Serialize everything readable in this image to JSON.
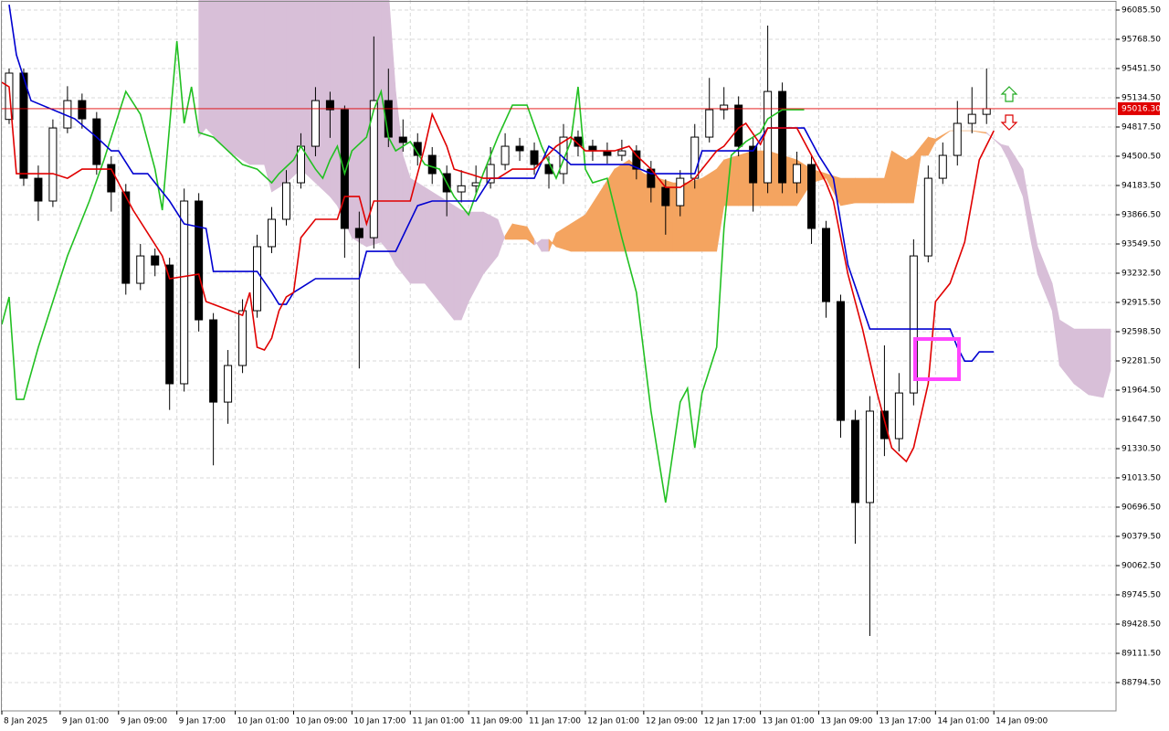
{
  "chart_data": {
    "type": "candlestick",
    "xlim": [
      -0.25,
      152.5
    ],
    "ylim": [
      88487.4,
      96194.5
    ],
    "grid": true,
    "xticks": [
      {
        "value": 0,
        "label": "8 Jan 2025"
      },
      {
        "value": 8,
        "label": "9 Jan 01:00"
      },
      {
        "value": 16,
        "label": "9 Jan 09:00"
      },
      {
        "value": 24,
        "label": "9 Jan 17:00"
      },
      {
        "value": 32,
        "label": "10 Jan 01:00"
      },
      {
        "value": 40,
        "label": "10 Jan 09:00"
      },
      {
        "value": 48,
        "label": "10 Jan 17:00"
      },
      {
        "value": 56,
        "label": "11 Jan 01:00"
      },
      {
        "value": 64,
        "label": "11 Jan 09:00"
      },
      {
        "value": 72,
        "label": "11 Jan 17:00"
      },
      {
        "value": 80,
        "label": "12 Jan 01:00"
      },
      {
        "value": 88,
        "label": "12 Jan 09:00"
      },
      {
        "value": 96,
        "label": "12 Jan 17:00"
      },
      {
        "value": 104,
        "label": "13 Jan 01:00"
      },
      {
        "value": 112,
        "label": "13 Jan 09:00"
      },
      {
        "value": 120,
        "label": "13 Jan 17:00"
      },
      {
        "value": 128,
        "label": "14 Jan 01:00"
      },
      {
        "value": 136,
        "label": "14 Jan 09:00"
      }
    ],
    "yticks": [
      {
        "value": 96085.5,
        "label": "96085.50"
      },
      {
        "value": 95768.5,
        "label": "95768.50"
      },
      {
        "value": 95451.5,
        "label": "95451.50"
      },
      {
        "value": 95134.5,
        "label": "95134.50"
      },
      {
        "value": 94817.5,
        "label": "94817.50"
      },
      {
        "value": 94500.5,
        "label": "94500.50"
      },
      {
        "value": 94183.5,
        "label": "94183.50"
      },
      {
        "value": 93866.5,
        "label": "93866.50"
      },
      {
        "value": 93549.5,
        "label": "93549.50"
      },
      {
        "value": 93232.5,
        "label": "93232.50"
      },
      {
        "value": 92915.5,
        "label": "92915.50"
      },
      {
        "value": 92598.5,
        "label": "92598.50"
      },
      {
        "value": 92281.5,
        "label": "92281.50"
      },
      {
        "value": 91964.5,
        "label": "91964.50"
      },
      {
        "value": 91647.5,
        "label": "91647.50"
      },
      {
        "value": 91330.5,
        "label": "91330.50"
      },
      {
        "value": 91013.5,
        "label": "91013.50"
      },
      {
        "value": 90696.5,
        "label": "90696.50"
      },
      {
        "value": 90379.5,
        "label": "90379.50"
      },
      {
        "value": 90062.5,
        "label": "90062.50"
      },
      {
        "value": 89745.5,
        "label": "89745.50"
      },
      {
        "value": 89428.5,
        "label": "89428.50"
      },
      {
        "value": 89111.5,
        "label": "89111.50"
      },
      {
        "value": 88794.5,
        "label": "88794.50"
      }
    ],
    "current_price": {
      "value": 95016.3,
      "label": "95016.30",
      "color": "#e00000"
    },
    "up_color": "#ffffff",
    "down_color": "#000000",
    "x": [
      1,
      3,
      5,
      7,
      9,
      11,
      13,
      15,
      17,
      19,
      21,
      23,
      25,
      27,
      29,
      31,
      33,
      35,
      37,
      39,
      41,
      43,
      45,
      47,
      49,
      51,
      53,
      55,
      57,
      59,
      61,
      63,
      65,
      67,
      69,
      71,
      73,
      75,
      77,
      79,
      81,
      83,
      85,
      87,
      89,
      91,
      93,
      95,
      97,
      99,
      101,
      103,
      105,
      107,
      109,
      111,
      113,
      115,
      117,
      119,
      121,
      123,
      125,
      127,
      129,
      131,
      133,
      135
    ],
    "open": [
      94900,
      95402,
      94262,
      94015,
      94807,
      95104,
      94906,
      94411,
      94114,
      93123,
      93420,
      93321,
      92034,
      94015,
      92727,
      91835,
      92232,
      92826,
      93520,
      93817,
      94213,
      94609,
      95104,
      95005,
      93718,
      93618,
      95104,
      94708,
      94650,
      94510,
      94312,
      94114,
      94180,
      94213,
      94411,
      94609,
      94560,
      94411,
      94312,
      94708,
      94609,
      94559,
      94510,
      94559,
      94361,
      94163,
      93965,
      94262,
      94708,
      95005,
      95055,
      94609,
      94213,
      95203,
      94213,
      94411,
      93718,
      92925,
      91637,
      90746,
      91737,
      91439,
      91934,
      93420,
      94262,
      94510,
      94857,
      94955
    ],
    "high": [
      95451,
      95450,
      94400,
      94900,
      95260,
      95180,
      94980,
      94500,
      94200,
      93550,
      93500,
      93400,
      94150,
      94100,
      92800,
      92400,
      92950,
      93650,
      93950,
      94350,
      94750,
      95250,
      95200,
      95050,
      93900,
      95800,
      95450,
      94900,
      94750,
      94600,
      94400,
      94350,
      94400,
      94600,
      94750,
      94700,
      94650,
      94500,
      94850,
      94780,
      94680,
      94650,
      94680,
      94620,
      94450,
      94250,
      94350,
      94850,
      95350,
      95250,
      95150,
      94700,
      95917,
      95300,
      94550,
      94500,
      93800,
      93000,
      91750,
      91900,
      92450,
      92150,
      93600,
      94400,
      94650,
      95100,
      95250,
      95451
    ],
    "low": [
      94850,
      94180,
      93800,
      93950,
      94750,
      94800,
      94300,
      93900,
      93000,
      93050,
      93200,
      91750,
      91950,
      92600,
      91150,
      91600,
      92150,
      92750,
      93450,
      93750,
      94150,
      94500,
      94700,
      93400,
      92200,
      93500,
      94600,
      94550,
      94400,
      94200,
      93850,
      94000,
      94100,
      94150,
      94350,
      94450,
      94300,
      94150,
      94200,
      94500,
      94450,
      94420,
      94450,
      94250,
      94000,
      93650,
      93850,
      94150,
      94650,
      94900,
      94500,
      93900,
      94100,
      94100,
      94100,
      93550,
      92750,
      91450,
      90300,
      89300,
      91250,
      91300,
      91800,
      93350,
      94200,
      94400,
      94750,
      94850
    ],
    "close": [
      95402,
      94262,
      94015,
      94807,
      95104,
      94906,
      94411,
      94114,
      93123,
      93420,
      93321,
      92034,
      94015,
      92727,
      91835,
      92232,
      92826,
      93520,
      93817,
      94213,
      94609,
      95104,
      95005,
      93718,
      93618,
      95104,
      94708,
      94650,
      94510,
      94312,
      94114,
      94180,
      94213,
      94411,
      94609,
      94560,
      94411,
      94312,
      94708,
      94609,
      94559,
      94510,
      94559,
      94361,
      94163,
      93965,
      94262,
      94708,
      95005,
      95055,
      94609,
      94213,
      95203,
      94213,
      94411,
      93718,
      92925,
      91637,
      90746,
      91737,
      91439,
      91934,
      93420,
      94262,
      94510,
      94857,
      94955,
      95016.3
    ],
    "cloud": {
      "bull_color": "#f4a460",
      "bear_color": "#d8bfd8",
      "x": [
        27,
        28,
        31,
        34,
        36,
        37,
        39,
        41,
        43,
        45,
        46,
        48,
        50,
        52,
        53,
        54,
        55,
        56,
        58,
        60,
        62,
        63,
        64,
        66,
        68,
        69,
        70,
        72,
        73,
        74,
        75,
        76,
        78,
        80,
        82,
        84,
        86,
        88,
        90,
        92,
        94,
        96,
        98,
        99,
        101,
        103,
        105,
        107,
        109,
        111,
        113,
        115,
        117,
        119,
        121,
        122,
        124,
        125,
        126,
        127,
        128,
        130,
        133,
        135,
        137,
        138,
        140,
        141,
        142,
        144,
        145,
        147,
        149,
        151,
        152
      ],
      "span_a": [
        94708,
        94807,
        94559,
        94411,
        94411,
        94114,
        94213,
        94361,
        94213,
        94064,
        93965,
        93618,
        93520,
        93569,
        93470,
        93321,
        93222,
        93123,
        93123,
        92925,
        92727,
        92727,
        92925,
        93222,
        93420,
        93638,
        93767,
        93737,
        93599,
        93470,
        93470,
        93668,
        93767,
        93866,
        94114,
        94361,
        94461,
        94312,
        94262,
        94213,
        94213,
        94262,
        94361,
        94461,
        94510,
        94559,
        94559,
        94510,
        94461,
        94361,
        94312,
        94262,
        94262,
        94262,
        94262,
        94559,
        94461,
        94510,
        94609,
        94708,
        94688,
        94777,
        94777,
        94758,
        94609,
        94461,
        94064,
        93618,
        93222,
        92826,
        92232,
        92034,
        91915,
        91885,
        92182
      ],
      "span_b": [
        96300,
        96300,
        96300,
        96300,
        96300,
        96300,
        96300,
        96300,
        96300,
        96300,
        96300,
        96300,
        96300,
        96300,
        96300,
        95203,
        94510,
        94262,
        94163,
        94064,
        93965,
        93916,
        93896,
        93896,
        93817,
        93599,
        93599,
        93599,
        93539,
        93599,
        93599,
        93520,
        93470,
        93470,
        93470,
        93470,
        93470,
        93470,
        93470,
        93470,
        93470,
        93470,
        93470,
        93965,
        93965,
        93965,
        93965,
        93965,
        93965,
        94213,
        94262,
        93965,
        93995,
        93995,
        93995,
        93995,
        93995,
        93995,
        94510,
        94510,
        94659,
        94777,
        94777,
        94748,
        94629,
        94609,
        94361,
        93916,
        93520,
        93123,
        92727,
        92628,
        92628,
        92628,
        92628
      ]
    },
    "lines": [
      {
        "color": "#22c022",
        "x": [
          0,
          1,
          2,
          3,
          5,
          7,
          9,
          12,
          14,
          17,
          19,
          21,
          22,
          24,
          25,
          26,
          27,
          29,
          31,
          33,
          35,
          37,
          38,
          40,
          41,
          43,
          44,
          45,
          46,
          47,
          48,
          50,
          51,
          52,
          53,
          54,
          56,
          58,
          60,
          62,
          64,
          66,
          68,
          70,
          72,
          74,
          76,
          78,
          79,
          80,
          81,
          83,
          85,
          87,
          89,
          91,
          93,
          94,
          95,
          96,
          98,
          99,
          100,
          102,
          104,
          105,
          107,
          110
        ],
        "values": [
          92677,
          92975,
          91865,
          91865,
          92430,
          92925,
          93420,
          94015,
          94461,
          95203,
          94956,
          94361,
          93916,
          95748,
          94857,
          95253,
          94758,
          94708,
          94559,
          94411,
          94361,
          94213,
          94312,
          94461,
          94609,
          94361,
          94262,
          94461,
          94609,
          94312,
          94559,
          94708,
          95005,
          95203,
          94708,
          94559,
          94659,
          94411,
          94361,
          94064,
          93866,
          94312,
          94708,
          95055,
          95055,
          94609,
          94262,
          94659,
          95253,
          94361,
          94213,
          94262,
          93618,
          93024,
          91737,
          90746,
          91836,
          91984,
          91340,
          91934,
          92430,
          93718,
          94510,
          94659,
          94758,
          94906,
          95005,
          95005
        ]
      },
      {
        "color": "#0000d0",
        "x": [
          1,
          2,
          4,
          10,
          13,
          15,
          16,
          18,
          20,
          23,
          25,
          28,
          29,
          35,
          37,
          38,
          39,
          40,
          42,
          43,
          49,
          50,
          54,
          57,
          59,
          65,
          67,
          73,
          75,
          76,
          78,
          86,
          89,
          95,
          96,
          103,
          105,
          110,
          112,
          114,
          116,
          119,
          130,
          131,
          132,
          133,
          134,
          136
        ],
        "values": [
          96144,
          95600,
          95104,
          94906,
          94708,
          94559,
          94559,
          94312,
          94312,
          94015,
          93767,
          93718,
          93252,
          93252,
          93024,
          92895,
          92895,
          93024,
          93123,
          93173,
          93173,
          93470,
          93470,
          93965,
          94015,
          94015,
          94262,
          94262,
          94609,
          94559,
          94411,
          94411,
          94312,
          94312,
          94559,
          94559,
          94807,
          94807,
          94510,
          94262,
          93321,
          92628,
          92628,
          92430,
          92280,
          92280,
          92380,
          92380
        ]
      },
      {
        "color": "#e00000",
        "x": [
          0,
          1,
          2,
          7,
          9,
          11,
          15,
          18,
          22,
          23,
          27,
          28,
          33,
          34,
          35,
          36,
          37,
          38,
          39,
          40,
          41,
          43,
          46,
          47,
          49,
          50,
          51,
          56,
          58,
          59,
          61,
          62,
          64,
          66,
          68,
          70,
          73,
          76,
          78,
          80,
          84,
          86,
          87,
          89,
          91,
          93,
          95,
          96,
          98,
          99,
          101,
          102,
          104,
          105,
          109,
          111,
          113,
          114,
          116,
          118,
          120,
          122,
          124,
          125,
          127,
          128,
          130,
          132,
          134,
          136
        ],
        "values": [
          95302,
          95253,
          94312,
          94312,
          94262,
          94361,
          94361,
          93916,
          93420,
          93173,
          93222,
          92925,
          92776,
          93024,
          92430,
          92400,
          92529,
          92826,
          92975,
          93024,
          93618,
          93817,
          93817,
          94064,
          94064,
          93767,
          94015,
          94015,
          94609,
          94956,
          94609,
          94361,
          94312,
          94262,
          94262,
          94361,
          94361,
          94609,
          94708,
          94559,
          94559,
          94609,
          94510,
          94361,
          94163,
          94163,
          94262,
          94361,
          94559,
          94609,
          94807,
          94857,
          94629,
          94807,
          94807,
          94510,
          94213,
          94015,
          93222,
          92628,
          91934,
          91340,
          91191,
          91340,
          92034,
          92925,
          93123,
          93569,
          94461,
          94777
        ]
      }
    ]
  }
}
